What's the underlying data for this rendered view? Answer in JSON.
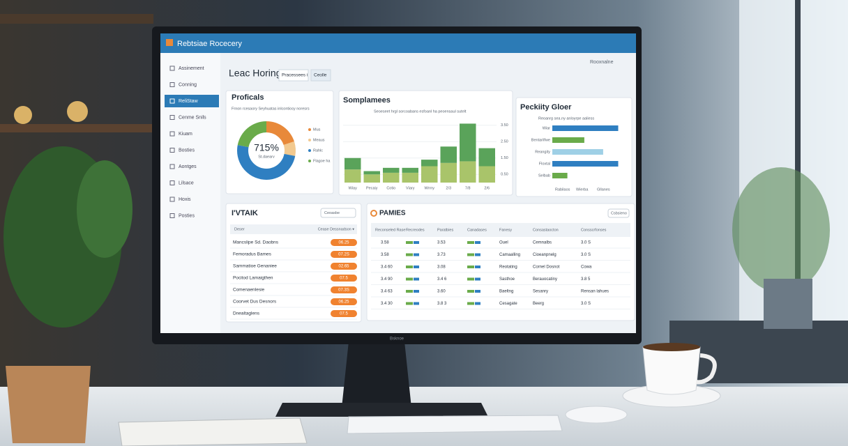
{
  "header": {
    "title": "Rebtsiae Rocecery",
    "user": "Rooxnalne"
  },
  "sidebar": {
    "items": [
      "Assinement",
      "Conning",
      "ReliStaw",
      "Cenme Snils",
      "Kiuam",
      "Bosties",
      "Aontges",
      "Lilsace",
      "Hoxis",
      "Posties"
    ],
    "active": 2
  },
  "page": {
    "title": "Leac Horing",
    "tabs": [
      "Pracessees i",
      "Ceolle"
    ]
  },
  "donut": {
    "type": "pie",
    "title": "Proficals",
    "subtitle": "Frnon rcesaory Seyhuatas inlcontiosy noresrs",
    "center": "715%",
    "center_sub": "St.daearv",
    "segments": [
      {
        "name": "Mus",
        "color": "#e8893a",
        "value": 20
      },
      {
        "name": "Meaus",
        "color": "#f2c98f",
        "value": 8
      },
      {
        "name": "Rahlc",
        "color": "#2f7fc1",
        "value": 50
      },
      {
        "name": "Flagoe ha",
        "color": "#6aab4a",
        "value": 22
      }
    ]
  },
  "columns": {
    "type": "bar",
    "title": "Somplamees",
    "subtitle": "Seoeseet hrgl sorcoabans esfoanl ha peoensaul sutelt",
    "categories": [
      "Wiay",
      "Pecaiy",
      "Cotio",
      "Viary",
      "Wrrny",
      "2/3",
      "7/8",
      "2/6"
    ],
    "series": [
      {
        "color": "#a9c46a",
        "values": [
          0.8,
          0.5,
          0.6,
          0.6,
          1.0,
          1.2,
          1.3,
          1.0
        ]
      },
      {
        "color": "#5aa35a",
        "values": [
          0.7,
          0.2,
          0.3,
          0.3,
          0.4,
          1.0,
          2.3,
          1.1
        ]
      }
    ],
    "ylim": [
      0,
      4
    ],
    "yticks": [
      {
        "value": 3.5,
        "label": "3.50"
      },
      {
        "value": 2.5,
        "label": "2.50"
      },
      {
        "value": 1.5,
        "label": "1.50"
      },
      {
        "value": 0.5,
        "label": "0.50"
      }
    ]
  },
  "hbars": {
    "type": "bar",
    "title": "Peckiity Gloer",
    "subtitle": "Reoanrg sea.ny anloyrpe aaliess",
    "categories": [
      "Wiar",
      "Bentarilfwe",
      "Reangity",
      "Floxtal",
      "Selbab"
    ],
    "values": [
      3.5,
      1.7,
      2.7,
      3.5,
      0.8
    ],
    "colors": [
      "#2f7fc1",
      "#6aab4a",
      "#9fd0e6",
      "#2f7fc1",
      "#6aab4a"
    ],
    "xlim": [
      0,
      4
    ],
    "footer": [
      "Rabilaos",
      "Wierba",
      "Gllanes"
    ]
  },
  "list": {
    "title": "I'VTAIK",
    "button": "Ceoasbe",
    "headers": [
      "Deser",
      "Cease Dessnadson ▾"
    ],
    "rows": [
      [
        "Mancslipe Sd. Daobns",
        "06.25"
      ],
      [
        "Femoradus Bames",
        "07.2S"
      ],
      [
        "Sammatioe Genaniee",
        "02.65"
      ],
      [
        "Pocitod Lamaigthen",
        "07.5"
      ],
      [
        "Comenaenlesie",
        "07.3S"
      ],
      [
        "Coorvet Dus Desnors",
        "06.25"
      ],
      [
        "Dnealtaglens",
        "07.5"
      ]
    ]
  },
  "table": {
    "title": "PAMIES",
    "button": "Csbsieno",
    "headers": [
      "Reconseled Rase",
      "Recreodes",
      "Paratbies",
      "Canadases",
      "Fanesy",
      "Consastaocton",
      "Consscrfonses"
    ],
    "rows": [
      [
        "3.58",
        "",
        "3.53",
        "",
        "Ouel",
        "Cemnalbs",
        "3.0 S"
      ],
      [
        "3.58",
        "",
        "3.73",
        "",
        "Camaalling",
        "Cioeanpnelg",
        "3.0 S"
      ],
      [
        "3.4 60",
        "",
        "3.08",
        "",
        "Reotating",
        "Cornel Dosnot",
        "Cowa"
      ],
      [
        "3.4 90",
        "",
        "3.4 6",
        "",
        "Sasthoe",
        "Berauocatiny",
        "3.8 5"
      ],
      [
        "3.4 63",
        "",
        "3.60",
        "",
        "Baeltng",
        "Sesanry",
        "Rensan lahues"
      ],
      [
        "3.4 30",
        "",
        "3.8 3",
        "",
        "Cesagate",
        "Beerg",
        "3.0 S"
      ]
    ]
  },
  "monitor_brand": "Bsknoe"
}
